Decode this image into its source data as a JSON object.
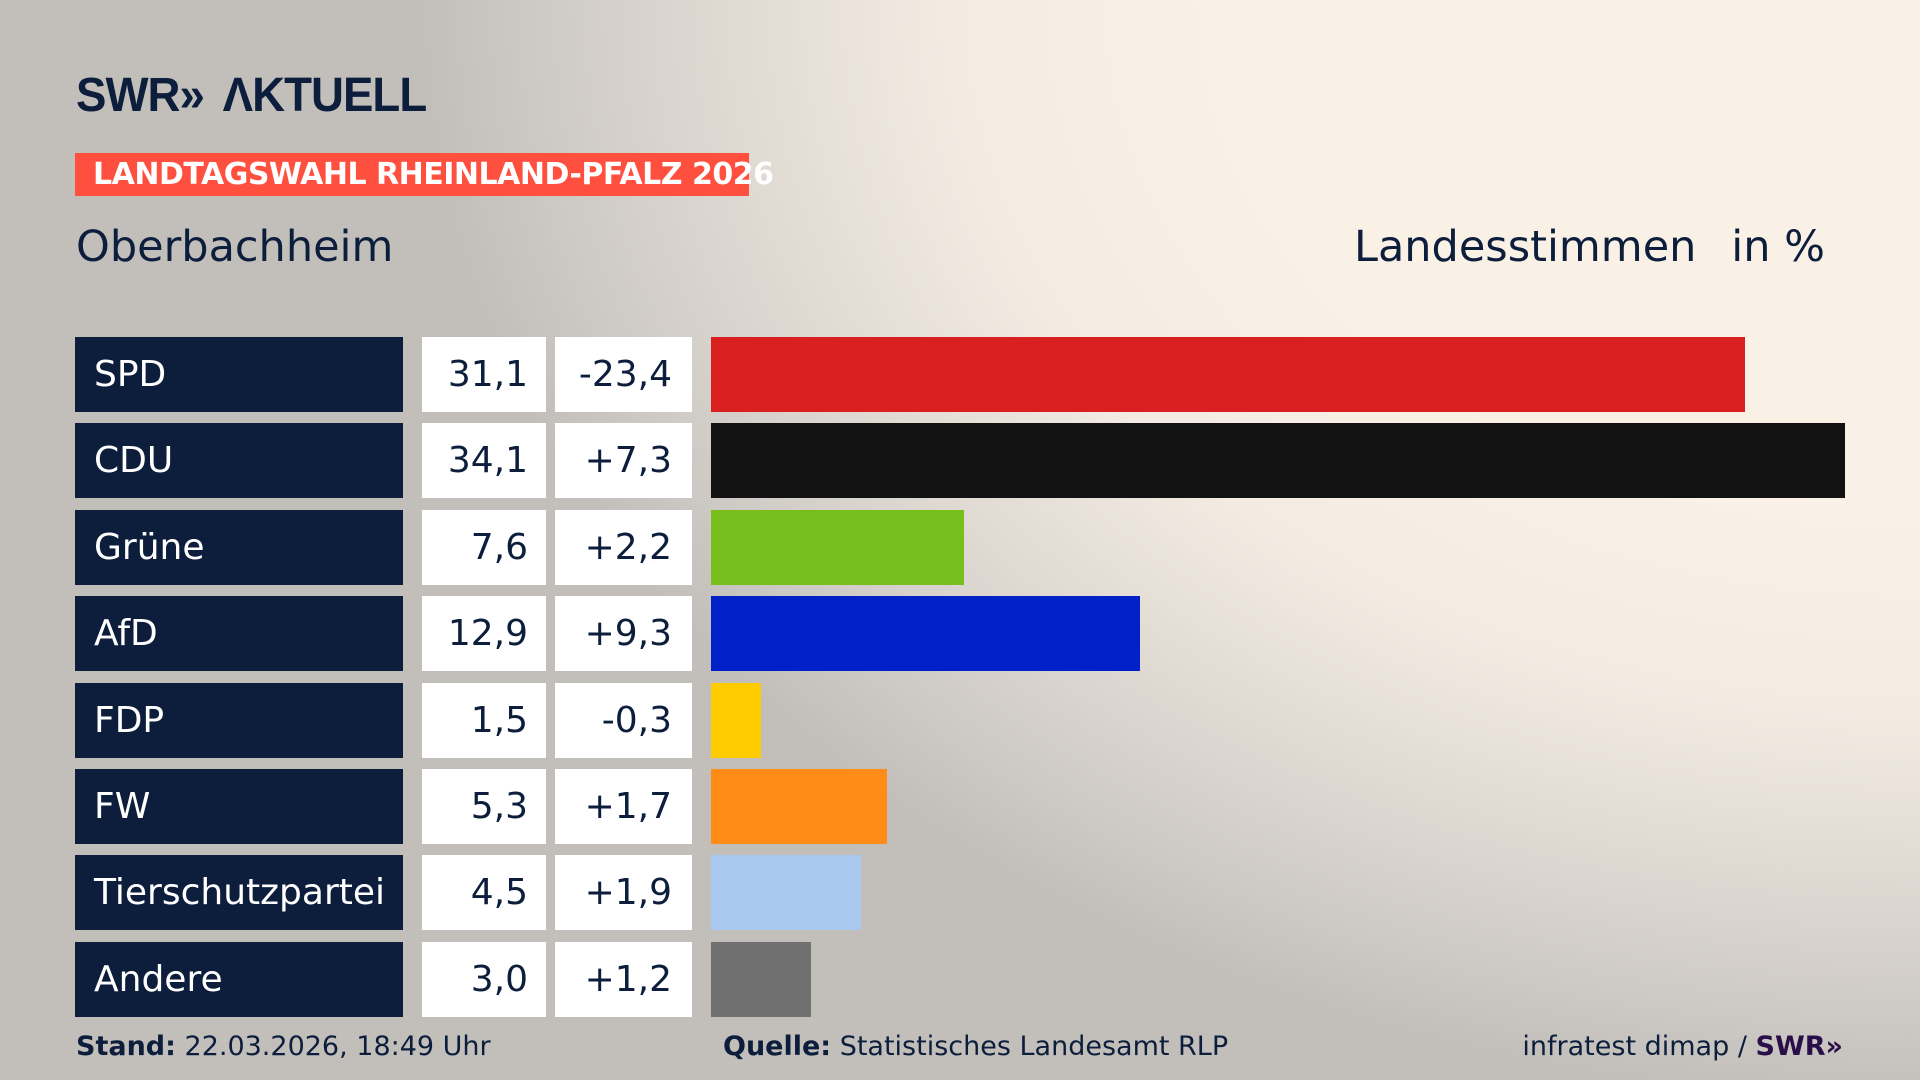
{
  "header": {
    "logo": "SWR» AKTUELL",
    "banner": "LANDTAGSWAHL RHEINLAND-PFALZ 2026",
    "location": "Oberbachheim",
    "vote_type": "Landesstimmen",
    "unit": "in %"
  },
  "chart_data": {
    "type": "bar",
    "orientation": "horizontal",
    "xlim": [
      0,
      34.1
    ],
    "categories": [
      "SPD",
      "CDU",
      "Grüne",
      "AfD",
      "FDP",
      "FW",
      "Tierschutzpartei",
      "Andere"
    ],
    "values": [
      31.1,
      34.1,
      7.6,
      12.9,
      1.5,
      5.3,
      4.5,
      3.0
    ],
    "value_labels": [
      "31,1",
      "34,1",
      "7,6",
      "12,9",
      "1,5",
      "5,3",
      "4,5",
      "3,0"
    ],
    "change_labels": [
      "-23,4",
      "+7,3",
      "+2,2",
      "+9,3",
      "-0,3",
      "+1,7",
      "+1,9",
      "+1,2"
    ],
    "changes": [
      -23.4,
      7.3,
      2.2,
      9.3,
      -0.3,
      1.7,
      1.9,
      1.2
    ],
    "colors": [
      "#d91f20",
      "#121212",
      "#78be1d",
      "#0020c8",
      "#ffcc00",
      "#ff8c16",
      "#a9c8ee",
      "#707070"
    ]
  },
  "footer": {
    "stand_label": "Stand:",
    "stand_value": "22.03.2026, 18:49 Uhr",
    "source_label": "Quelle:",
    "source_value": "Statistisches Landesamt RLP",
    "credit": "infratest dimap /",
    "credit_logo": "SWR»"
  }
}
